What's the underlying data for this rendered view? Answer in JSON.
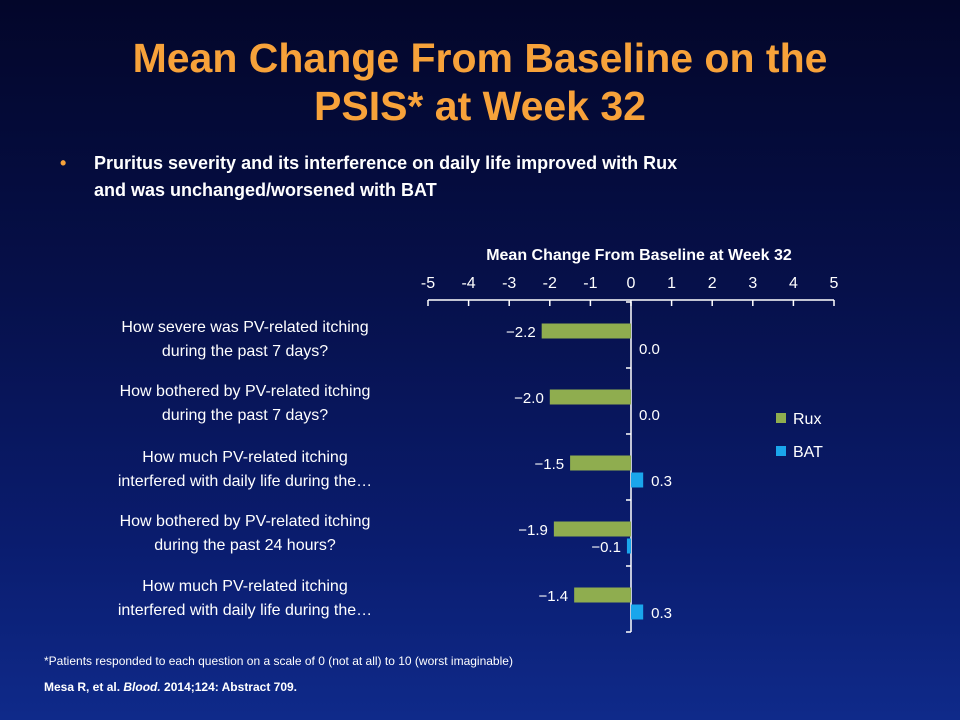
{
  "slide": {
    "title_line1": "Mean Change From Baseline on the",
    "title_line2": "PSIS* at Week 32",
    "bullet_symbol": "•",
    "bullet_text_line1": "Pruritus severity and its interference on daily life improved with Rux",
    "bullet_text_line2": "and was unchanged/worsened with BAT",
    "footnote": "*Patients responded to each question on a scale of 0 (not at all) to 10 (worst imaginable)",
    "citation_authors": "Mesa R, et al.",
    "citation_journal": "Blood.",
    "citation_rest": "2014;124: Abstract 709."
  },
  "colors": {
    "title": "#f7a23a",
    "rux": "#8fad4f",
    "bat": "#1aa6ec",
    "axis": "#ffffff",
    "text": "#ffffff"
  },
  "chart_data": {
    "type": "bar",
    "orientation": "horizontal",
    "xlabel": "Mean Change From Baseline at Week 32",
    "xlim": [
      -5,
      5
    ],
    "xticks": [
      -5,
      -4,
      -3,
      -2,
      -1,
      0,
      1,
      2,
      3,
      4,
      5
    ],
    "xtick_labels": [
      "-5",
      "-4",
      "-3",
      "-2",
      "-1",
      "0",
      "1",
      "2",
      "3",
      "4",
      "5"
    ],
    "x_axis_position": "top",
    "legend_position": "right",
    "grid": false,
    "categories": [
      {
        "line1": "How severe was PV-related itching",
        "line2": "during the past 7 days?"
      },
      {
        "line1": "How bothered by PV-related itching",
        "line2": "during the past 7 days?"
      },
      {
        "line1": "How much PV-related itching",
        "line2": "interfered with daily life during the…"
      },
      {
        "line1": "How bothered by PV-related itching",
        "line2": "during the past 24 hours?"
      },
      {
        "line1": "How much PV-related itching",
        "line2": "interfered with daily life during the…"
      }
    ],
    "series": [
      {
        "name": "Rux",
        "values": [
          -2.2,
          -2.0,
          -1.5,
          -1.9,
          -1.4
        ],
        "labels": [
          "−2.2",
          "−2.0",
          "−1.5",
          "−1.9",
          "−1.4"
        ]
      },
      {
        "name": "BAT",
        "values": [
          0.0,
          0.0,
          0.3,
          -0.1,
          0.3
        ],
        "labels": [
          "0.0",
          "0.0",
          "0.3",
          "−0.1",
          "0.3"
        ]
      }
    ]
  }
}
